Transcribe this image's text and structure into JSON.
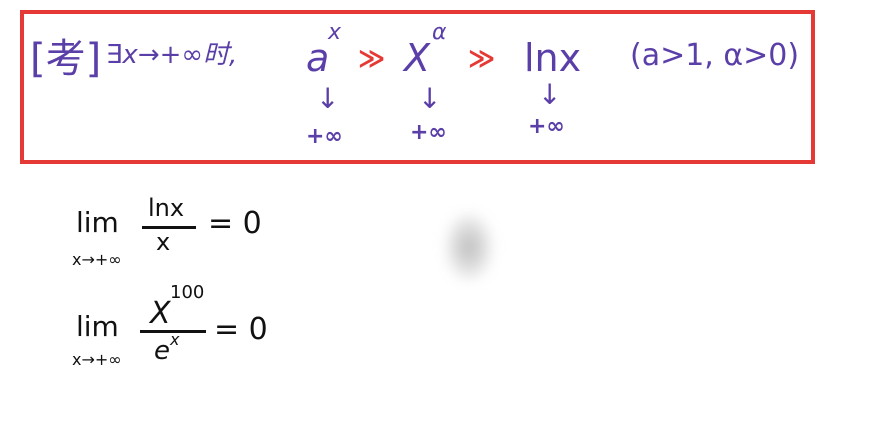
{
  "note": {
    "tag": "[考]",
    "condition": "∃x→+∞时,",
    "a_base": "a",
    "a_sup": "x",
    "x_base": "X",
    "x_sup": "α",
    "ln": "lnx",
    "gg": "≫",
    "params": "(a>1, α>0)",
    "down": "↓",
    "infinity": "+∞"
  },
  "formulas": [
    {
      "lim": "lim",
      "sub": "x→+∞",
      "numerator": "lnx",
      "denominator": "x",
      "result": "= 0"
    },
    {
      "lim": "lim",
      "sub": "x→+∞",
      "numerator_base": "X",
      "numerator_sup": "100",
      "denominator_base": "e",
      "denominator_sup": "x",
      "result": "= 0"
    }
  ],
  "colors": {
    "box_border": "#e53935",
    "ink_purple": "#5b3fa8",
    "ink_black": "#111111",
    "accent_red": "#e53935"
  }
}
